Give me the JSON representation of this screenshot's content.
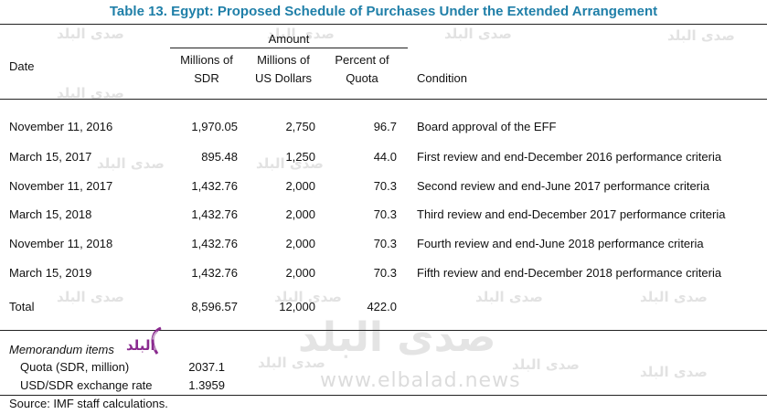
{
  "title": "Table 13. Egypt: Proposed Schedule of Purchases Under the Extended Arrangement",
  "headers": {
    "date": "Date",
    "amount": "Amount",
    "sdr_line1": "Millions of",
    "sdr_line2": "SDR",
    "usd_line1": "Millions of",
    "usd_line2": "US Dollars",
    "pct_line1": "Percent of",
    "pct_line2": "Quota",
    "condition": "Condition"
  },
  "rows": [
    {
      "date": "November 11, 2016",
      "sdr": "1,970.05",
      "usd": "2,750",
      "pct": "96.7",
      "condition": "Board approval of the EFF"
    },
    {
      "date": "March 15, 2017",
      "sdr": "895.48",
      "usd": "1,250",
      "pct": "44.0",
      "condition": "First review and end-December 2016 performance criteria"
    },
    {
      "date": "November 11, 2017",
      "sdr": "1,432.76",
      "usd": "2,000",
      "pct": "70.3",
      "condition": "Second review and end-June 2017 performance criteria"
    },
    {
      "date": "March 15, 2018",
      "sdr": "1,432.76",
      "usd": "2,000",
      "pct": "70.3",
      "condition": "Third review and end-December 2017 performance criteria"
    },
    {
      "date": "November 11, 2018",
      "sdr": "1,432.76",
      "usd": "2,000",
      "pct": "70.3",
      "condition": "Fourth review and end-June 2018 performance criteria"
    },
    {
      "date": "March 15, 2019",
      "sdr": "1,432.76",
      "usd": "2,000",
      "pct": "70.3",
      "condition": "Fifth review and end-December 2018 performance criteria"
    }
  ],
  "total": {
    "label": "Total",
    "sdr": "8,596.57",
    "usd": "12,000",
    "pct": "422.0"
  },
  "memo": {
    "heading": "Memorandum items",
    "quota_label": "Quota (SDR, million)",
    "quota_value": "2037.1",
    "fx_label": "USD/SDR exchange rate",
    "fx_value": "1.3959"
  },
  "source": "Source: IMF staff calculations.",
  "watermark": {
    "small": "صدى البلد",
    "big": "صدى البلد",
    "site": "www.elbalad.news",
    "logo_text": "البلد"
  },
  "colors": {
    "title": "#1f7fa8",
    "logo": "#8a2a8f"
  }
}
